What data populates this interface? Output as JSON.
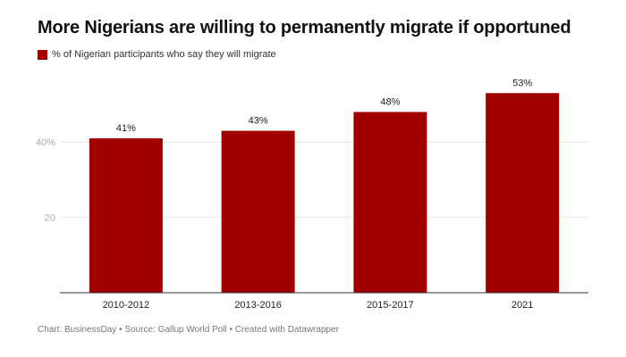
{
  "chart_data": {
    "type": "bar",
    "title": "More Nigerians are willing to permanently migrate if opportuned",
    "categories": [
      "2010-2012",
      "2013-2016",
      "2015-2017",
      "2021"
    ],
    "series": [
      {
        "name": "% of Nigerian participants who say they will migrate",
        "values": [
          41,
          43,
          48,
          53
        ],
        "color": "#a00000"
      }
    ],
    "data_labels": [
      "41%",
      "43%",
      "48%",
      "53%"
    ],
    "yticks": [
      {
        "value": 20,
        "label": "20"
      },
      {
        "value": 40,
        "label": "40%"
      }
    ],
    "ylim": [
      0,
      60
    ],
    "grid": true,
    "legend": "top-left"
  },
  "footer": "Chart: BusinessDay • Source: Gallup World Poll • Created with Datawrapper"
}
